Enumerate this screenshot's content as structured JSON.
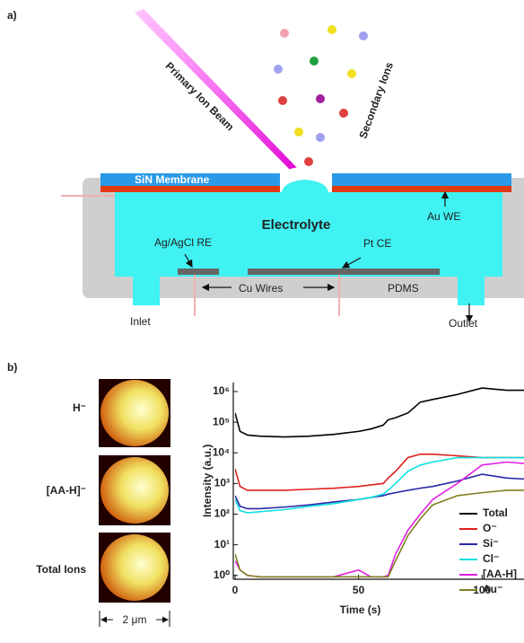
{
  "panel_a": {
    "label": "a)",
    "beam": "Primary Ion Beam",
    "ions": "Secondary Ions",
    "membrane": "SiN Membrane",
    "electrolyte": "Electrolyte",
    "we": "Au WE",
    "re": "Ag/AgCl RE",
    "ce": "Pt CE",
    "wires": "Cu Wires",
    "pdms": "PDMS",
    "inlet": "Inlet",
    "outlet": "Outlet"
  },
  "panel_b": {
    "label": "b)",
    "images": [
      {
        "label": "H⁻"
      },
      {
        "label": "[AA-H]⁻"
      },
      {
        "label": "Total Ions"
      }
    ],
    "scale_bar": "2 μm"
  },
  "chart_data": {
    "type": "line",
    "xlabel": "Time (s)",
    "ylabel": "Intensity (a.u.)",
    "log_y": true,
    "x": [
      0,
      2,
      5,
      10,
      20,
      30,
      40,
      50,
      55,
      60,
      62,
      65,
      70,
      75,
      80,
      90,
      100,
      110,
      117
    ],
    "xlim": [
      0,
      117
    ],
    "xticks": [
      0,
      50,
      100
    ],
    "ylim": [
      0.75,
      2000000
    ],
    "yticks": [
      {
        "value": 1,
        "label": "10⁰"
      },
      {
        "value": 10,
        "label": "10¹"
      },
      {
        "value": 100,
        "label": "10²"
      },
      {
        "value": 1000,
        "label": "10³"
      },
      {
        "value": 10000,
        "label": "10⁴"
      },
      {
        "value": 100000,
        "label": "10⁵"
      },
      {
        "value": 1000000,
        "label": "10⁶"
      }
    ],
    "series": [
      {
        "name": "Total",
        "color": "#000000",
        "values": [
          200000,
          50000,
          38000,
          35000,
          33000,
          35000,
          40000,
          50000,
          60000,
          80000,
          120000,
          140000,
          200000,
          450000,
          550000,
          800000,
          1300000,
          1100000,
          1100000
        ]
      },
      {
        "name": "O⁻",
        "color": "#e0201e",
        "values": [
          3000,
          800,
          600,
          600,
          600,
          650,
          700,
          800,
          900,
          1000,
          1500,
          2500,
          7000,
          9000,
          9000,
          8000,
          7000,
          7000,
          7000
        ]
      },
      {
        "name": "Si⁻",
        "color": "#2828a8",
        "values": [
          400,
          180,
          150,
          150,
          170,
          200,
          250,
          300,
          350,
          400,
          450,
          500,
          600,
          700,
          800,
          1200,
          2000,
          1500,
          1400
        ]
      },
      {
        "name": "Cl⁻",
        "color": "#10e0e0",
        "values": [
          300,
          130,
          110,
          120,
          140,
          180,
          220,
          300,
          350,
          450,
          600,
          1000,
          2500,
          4000,
          5000,
          7000,
          7000,
          7000,
          7000
        ]
      },
      {
        "name": "[AA-H]",
        "color": "#e020e0",
        "values": [
          3,
          1.5,
          1,
          0.9,
          0.9,
          0.9,
          0.9,
          1.5,
          0.9,
          0.9,
          1,
          5,
          30,
          100,
          300,
          1000,
          4000,
          5000,
          4500
        ]
      },
      {
        "name": "Au⁻",
        "color": "#808020",
        "values": [
          5,
          1.5,
          1,
          0.9,
          0.9,
          0.9,
          0.9,
          0.9,
          0.9,
          0.9,
          0.9,
          3,
          20,
          70,
          200,
          400,
          500,
          600,
          600
        ]
      }
    ]
  }
}
